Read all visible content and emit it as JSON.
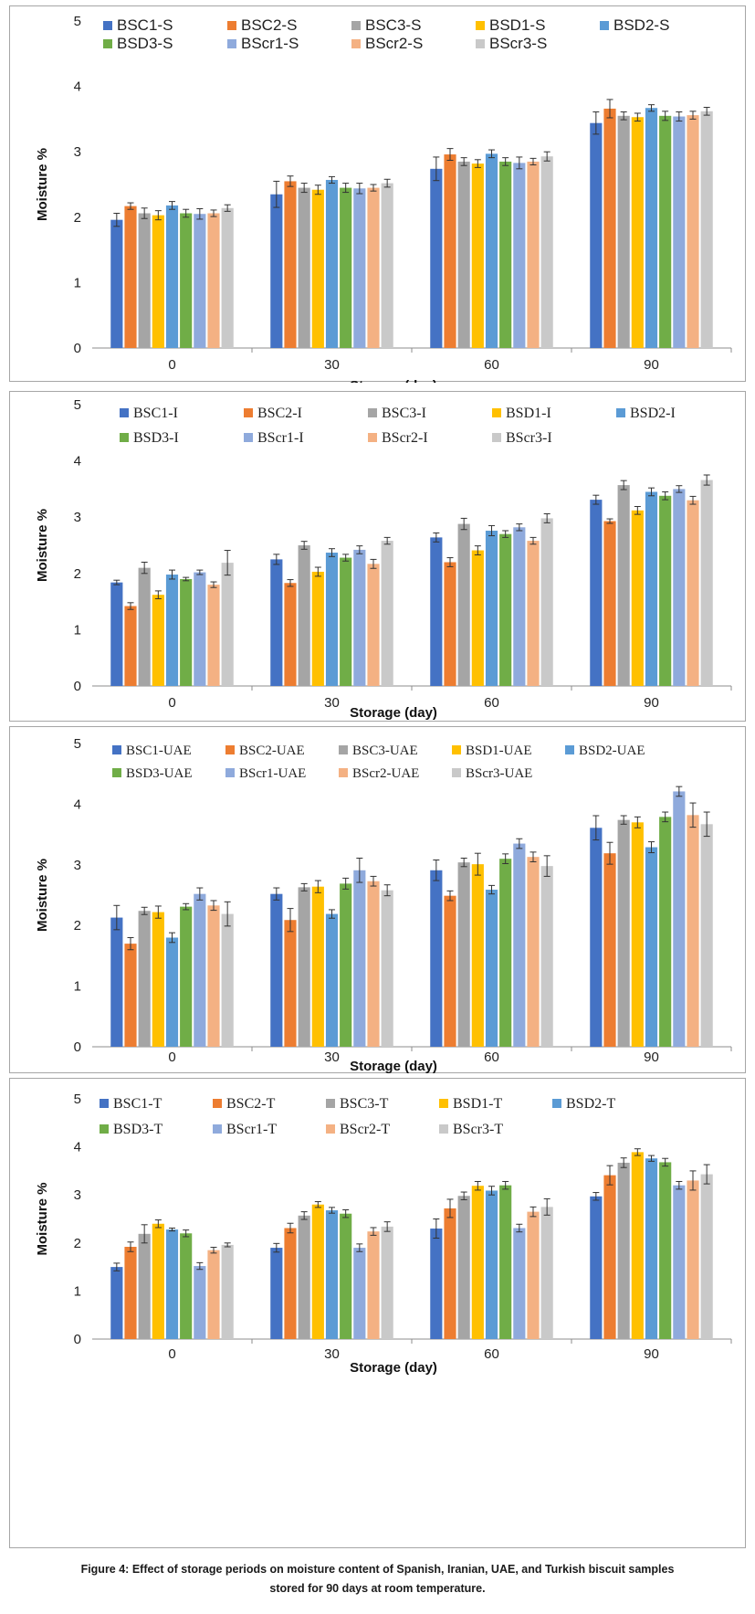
{
  "figure": {
    "caption_line1": "Figure 4: Effect of storage periods on moisture content of Spanish, Iranian, UAE, and Turkish biscuit samples",
    "caption_line2": "stored for 90 days at room temperature."
  },
  "colors": [
    "#4472c4",
    "#ed7d31",
    "#a5a5a5",
    "#ffc000",
    "#5b9bd5",
    "#70ad47",
    "#8faadc",
    "#f4b183",
    "#c9c9c9"
  ],
  "chart_data": [
    {
      "type": "bar",
      "xlabel": "Storage (day)",
      "ylabel": "Moisture %",
      "ylim": [
        0,
        5
      ],
      "yticks": [
        "0",
        "1",
        "2",
        "3",
        "4",
        "5"
      ],
      "categories": [
        "0",
        "30",
        "60",
        "90"
      ],
      "legend_position": "top",
      "series": [
        {
          "name": "BSC1-S",
          "values": [
            1.96,
            2.35,
            2.74,
            3.44
          ],
          "errors": [
            0.1,
            0.2,
            0.18,
            0.17
          ]
        },
        {
          "name": "BSC2-S",
          "values": [
            2.17,
            2.55,
            2.96,
            3.66
          ],
          "errors": [
            0.05,
            0.08,
            0.09,
            0.14
          ]
        },
        {
          "name": "BSC3-S",
          "values": [
            2.06,
            2.45,
            2.85,
            3.55
          ],
          "errors": [
            0.08,
            0.07,
            0.06,
            0.06
          ]
        },
        {
          "name": "BSD1-S",
          "values": [
            2.03,
            2.42,
            2.82,
            3.53
          ],
          "errors": [
            0.07,
            0.07,
            0.06,
            0.06
          ]
        },
        {
          "name": "BSD2-S",
          "values": [
            2.18,
            2.57,
            2.97,
            3.67
          ],
          "errors": [
            0.06,
            0.05,
            0.06,
            0.05
          ]
        },
        {
          "name": "BSD3-S",
          "values": [
            2.06,
            2.45,
            2.85,
            3.55
          ],
          "errors": [
            0.06,
            0.07,
            0.06,
            0.07
          ]
        },
        {
          "name": "BScr1-S",
          "values": [
            2.05,
            2.44,
            2.83,
            3.54
          ],
          "errors": [
            0.08,
            0.08,
            0.09,
            0.07
          ]
        },
        {
          "name": "BScr2-S",
          "values": [
            2.06,
            2.45,
            2.85,
            3.56
          ],
          "errors": [
            0.05,
            0.05,
            0.05,
            0.06
          ]
        },
        {
          "name": "BScr3-S",
          "values": [
            2.14,
            2.52,
            2.93,
            3.62
          ],
          "errors": [
            0.05,
            0.06,
            0.07,
            0.06
          ]
        }
      ]
    },
    {
      "type": "bar",
      "xlabel": "Storage (day)",
      "ylabel": "Moisture %",
      "ylim": [
        0,
        5
      ],
      "yticks": [
        "0",
        "1",
        "2",
        "3",
        "4",
        "5"
      ],
      "categories": [
        "0",
        "30",
        "60",
        "90"
      ],
      "legend_position": "top",
      "series": [
        {
          "name": "BSC1-I",
          "values": [
            1.84,
            2.25,
            2.64,
            3.31
          ],
          "errors": [
            0.04,
            0.09,
            0.08,
            0.08
          ]
        },
        {
          "name": "BSC2-I",
          "values": [
            1.42,
            1.83,
            2.2,
            2.93
          ],
          "errors": [
            0.06,
            0.06,
            0.08,
            0.04
          ]
        },
        {
          "name": "BSC3-I",
          "values": [
            2.1,
            2.5,
            2.88,
            3.57
          ],
          "errors": [
            0.1,
            0.07,
            0.1,
            0.08
          ]
        },
        {
          "name": "BSD1-I",
          "values": [
            1.62,
            2.03,
            2.41,
            3.12
          ],
          "errors": [
            0.07,
            0.08,
            0.08,
            0.07
          ]
        },
        {
          "name": "BSD2-I",
          "values": [
            1.98,
            2.37,
            2.76,
            3.45
          ],
          "errors": [
            0.08,
            0.07,
            0.09,
            0.07
          ]
        },
        {
          "name": "BSD3-I",
          "values": [
            1.9,
            2.28,
            2.7,
            3.38
          ],
          "errors": [
            0.03,
            0.06,
            0.06,
            0.07
          ]
        },
        {
          "name": "BScr1-I",
          "values": [
            2.02,
            2.42,
            2.82,
            3.5
          ],
          "errors": [
            0.04,
            0.07,
            0.06,
            0.06
          ]
        },
        {
          "name": "BScr2-I",
          "values": [
            1.8,
            2.17,
            2.58,
            3.3
          ],
          "errors": [
            0.05,
            0.08,
            0.06,
            0.07
          ]
        },
        {
          "name": "BScr3-I",
          "values": [
            2.19,
            2.58,
            2.98,
            3.66
          ],
          "errors": [
            0.22,
            0.06,
            0.08,
            0.09
          ]
        }
      ]
    },
    {
      "type": "bar",
      "xlabel": "Storage (day)",
      "ylabel": "Moisture %",
      "ylim": [
        0,
        5
      ],
      "yticks": [
        "0",
        "1",
        "2",
        "3",
        "4",
        "5"
      ],
      "categories": [
        "0",
        "30",
        "60",
        "90"
      ],
      "legend_position": "top",
      "series": [
        {
          "name": "BSC1-UAE",
          "values": [
            2.13,
            2.52,
            2.91,
            3.61
          ],
          "errors": [
            0.2,
            0.1,
            0.17,
            0.2
          ]
        },
        {
          "name": "BSC2-UAE",
          "values": [
            1.7,
            2.09,
            2.49,
            3.19
          ],
          "errors": [
            0.1,
            0.19,
            0.08,
            0.18
          ]
        },
        {
          "name": "BSC3-UAE",
          "values": [
            2.24,
            2.63,
            3.04,
            3.74
          ],
          "errors": [
            0.06,
            0.06,
            0.07,
            0.07
          ]
        },
        {
          "name": "BSD1-UAE",
          "values": [
            2.22,
            2.64,
            3.01,
            3.7
          ],
          "errors": [
            0.1,
            0.1,
            0.18,
            0.09
          ]
        },
        {
          "name": "BSD2-UAE",
          "values": [
            1.8,
            2.19,
            2.59,
            3.29
          ],
          "errors": [
            0.08,
            0.07,
            0.07,
            0.09
          ]
        },
        {
          "name": "BSD3-UAE",
          "values": [
            2.31,
            2.69,
            3.1,
            3.79
          ],
          "errors": [
            0.05,
            0.09,
            0.08,
            0.08
          ]
        },
        {
          "name": "BScr1-UAE",
          "values": [
            2.52,
            2.91,
            3.35,
            4.21
          ],
          "errors": [
            0.1,
            0.2,
            0.08,
            0.08
          ]
        },
        {
          "name": "BScr2-UAE",
          "values": [
            2.33,
            2.73,
            3.13,
            3.82
          ],
          "errors": [
            0.08,
            0.08,
            0.08,
            0.2
          ]
        },
        {
          "name": "BScr3-UAE",
          "values": [
            2.19,
            2.58,
            2.98,
            3.67
          ],
          "errors": [
            0.2,
            0.09,
            0.17,
            0.2
          ]
        }
      ]
    },
    {
      "type": "bar",
      "xlabel": "Storage (day)",
      "ylabel": "Moisture %",
      "ylim": [
        0,
        5
      ],
      "yticks": [
        "0",
        "1",
        "2",
        "3",
        "4",
        "5"
      ],
      "categories": [
        "0",
        "30",
        "60",
        "90"
      ],
      "legend_position": "top",
      "series": [
        {
          "name": "BSC1-T",
          "values": [
            1.5,
            1.9,
            2.3,
            2.97
          ],
          "errors": [
            0.08,
            0.09,
            0.2,
            0.08
          ]
        },
        {
          "name": "BSC2-T",
          "values": [
            1.92,
            2.31,
            2.72,
            3.41
          ],
          "errors": [
            0.1,
            0.1,
            0.19,
            0.2
          ]
        },
        {
          "name": "BSC3-T",
          "values": [
            2.19,
            2.57,
            2.98,
            3.67
          ],
          "errors": [
            0.19,
            0.08,
            0.08,
            0.1
          ]
        },
        {
          "name": "BSD1-T",
          "values": [
            2.4,
            2.8,
            3.19,
            3.89
          ],
          "errors": [
            0.08,
            0.06,
            0.09,
            0.07
          ]
        },
        {
          "name": "BSD2-T",
          "values": [
            2.28,
            2.68,
            3.09,
            3.76
          ],
          "errors": [
            0.03,
            0.06,
            0.09,
            0.06
          ]
        },
        {
          "name": "BSD3-T",
          "values": [
            2.2,
            2.61,
            3.2,
            3.68
          ],
          "errors": [
            0.07,
            0.08,
            0.08,
            0.08
          ]
        },
        {
          "name": "BScr1-T",
          "values": [
            1.52,
            1.9,
            2.31,
            3.2
          ],
          "errors": [
            0.07,
            0.08,
            0.08,
            0.08
          ]
        },
        {
          "name": "BScr2-T",
          "values": [
            1.85,
            2.24,
            2.65,
            3.3
          ],
          "errors": [
            0.06,
            0.08,
            0.1,
            0.2
          ]
        },
        {
          "name": "BScr3-T",
          "values": [
            1.96,
            2.34,
            2.75,
            3.43
          ],
          "errors": [
            0.04,
            0.1,
            0.17,
            0.2
          ]
        }
      ]
    }
  ]
}
